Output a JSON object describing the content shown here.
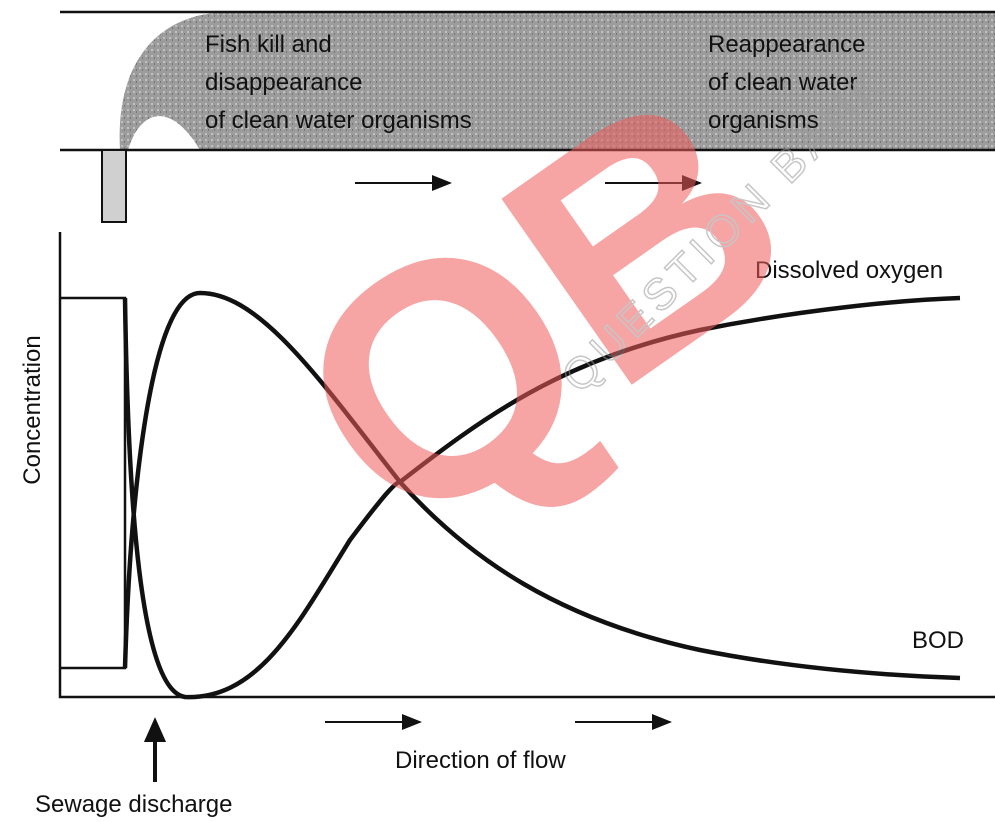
{
  "river": {
    "zone_1": [
      "Fish kill and",
      "disappearance",
      "of clean water organisms"
    ],
    "zone_2": [
      "Reappearance",
      "of clean water",
      "organisms"
    ]
  },
  "graph": {
    "y_axis_label": "Concentration",
    "curve_1": "Dissolved oxygen",
    "curve_2": "BOD",
    "flow_label": "Direction of flow",
    "source_label": "Sewage discharge"
  },
  "watermark": {
    "logo": "QB",
    "text": "QUESTION BANK"
  }
}
